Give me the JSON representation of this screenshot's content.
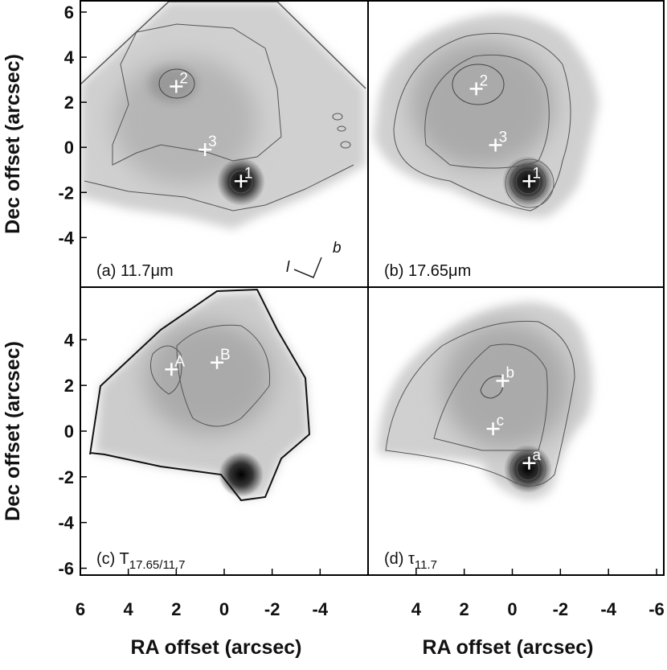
{
  "chart_data": [
    {
      "type": "map",
      "panel_label": "(a) 11.7μm",
      "xlim": [
        6,
        -6
      ],
      "ylim": [
        -6.2,
        6.5
      ],
      "yticks": [
        -4,
        -2,
        0,
        2,
        4,
        6
      ],
      "ylabel": "Dec offset (arcsec)",
      "markers": {
        "x": [
          -0.7,
          2,
          0.8
        ],
        "y": [
          -1.5,
          2.7,
          -0.1
        ],
        "labels": [
          "1",
          "2",
          "3"
        ]
      },
      "annotations": [
        "l",
        "b"
      ]
    },
    {
      "type": "map",
      "panel_label": "(b) 17.65μm",
      "xlim": [
        6,
        -6.3
      ],
      "ylim": [
        -6.2,
        6.5
      ],
      "markers": {
        "x": [
          -0.7,
          1.5,
          0.7
        ],
        "y": [
          -1.5,
          2.6,
          0.1
        ],
        "labels": [
          "1",
          "2",
          "3"
        ]
      }
    },
    {
      "type": "map",
      "panel_label": "(c) T",
      "panel_label_sub": "17.65/11.7",
      "xlim": [
        6,
        -6
      ],
      "ylim": [
        -6.3,
        6.3
      ],
      "xticks": [
        6,
        4,
        2,
        0,
        -2,
        -4
      ],
      "yticks": [
        -6,
        -4,
        -2,
        0,
        2,
        4
      ],
      "xlabel": "RA offset (arcsec)",
      "ylabel": "Dec offset (arcsec)",
      "markers": {
        "x": [
          2.2,
          0.3
        ],
        "y": [
          2.7,
          3.0
        ],
        "labels": [
          "A",
          "B"
        ]
      }
    },
    {
      "type": "map",
      "panel_label": "(d) τ",
      "panel_label_sub": "11.7",
      "xlim": [
        6,
        -6.3
      ],
      "ylim": [
        -6.3,
        6.3
      ],
      "xticks": [
        4,
        2,
        0,
        -2,
        -4,
        -6
      ],
      "xlabel": "RA offset (arcsec)",
      "markers": {
        "x": [
          0.4,
          0.8,
          -0.7
        ],
        "y": [
          2.2,
          0.1,
          -1.4
        ],
        "labels": [
          "b",
          "c",
          "a"
        ]
      }
    }
  ]
}
